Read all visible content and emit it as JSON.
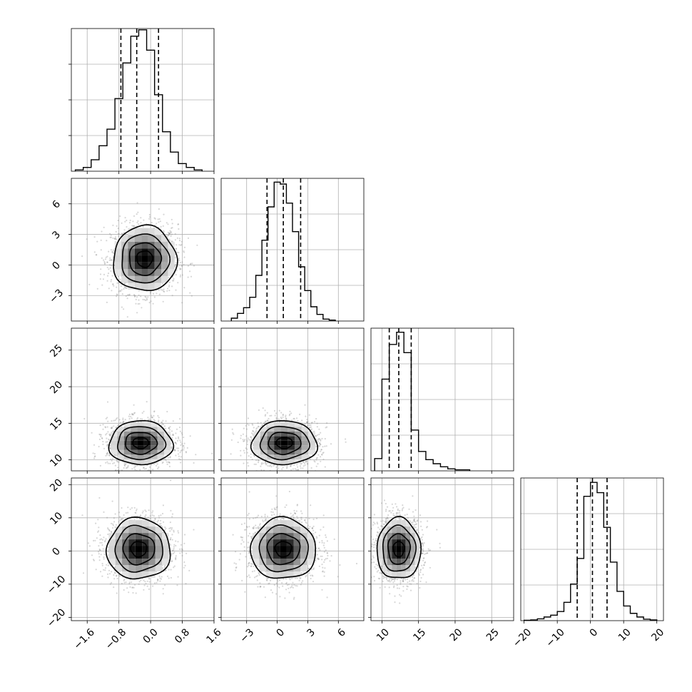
{
  "chart_data": {
    "type": "corner",
    "grid": true,
    "colors": {
      "hist": "#000000",
      "contour": "#000000",
      "scatter": "#8c8c8c",
      "grid": "#b0b0b0"
    },
    "parameters": [
      {
        "range": [
          -2.0,
          1.6
        ],
        "ticks": [
          -1.6,
          -0.8,
          0.0,
          0.8,
          1.6
        ],
        "tick_labels": [
          "−1.6",
          "−0.8",
          "0.0",
          "0.8",
          "1.6"
        ],
        "quantiles": [
          -0.75,
          -0.35,
          0.2
        ],
        "histogram": {
          "edges": [
            -1.9,
            -1.7,
            -1.5,
            -1.3,
            -1.1,
            -0.9,
            -0.7,
            -0.5,
            -0.3,
            -0.1,
            0.1,
            0.3,
            0.5,
            0.7,
            0.9,
            1.1,
            1.3
          ],
          "counts": [
            1,
            3,
            9,
            20,
            33,
            57,
            85,
            106,
            111,
            95,
            60,
            31,
            15,
            6,
            3,
            1
          ],
          "ymax": 112
        }
      },
      {
        "range": [
          -5.5,
          8.5
        ],
        "ticks": [
          -3,
          0,
          3,
          6
        ],
        "tick_labels": [
          "−3",
          "0",
          "3",
          "6"
        ],
        "quantiles": [
          -1.0,
          0.6,
          2.3
        ],
        "histogram": {
          "edges": [
            -4.5,
            -3.9,
            -3.3,
            -2.7,
            -2.1,
            -1.5,
            -0.9,
            -0.3,
            0.3,
            0.9,
            1.5,
            2.1,
            2.7,
            3.3,
            3.9,
            4.5,
            5.1,
            5.7
          ],
          "counts": [
            3,
            8,
            14,
            25,
            48,
            85,
            120,
            146,
            144,
            124,
            94,
            57,
            32,
            15,
            7,
            2,
            1
          ],
          "ymax": 150
        }
      },
      {
        "range": [
          8.5,
          28.0
        ],
        "ticks": [
          10,
          15,
          20,
          25
        ],
        "tick_labels": [
          "10",
          "15",
          "20",
          "25"
        ],
        "quantiles": [
          11.0,
          12.3,
          14.0
        ],
        "histogram": {
          "edges": [
            9.0,
            10.0,
            11.0,
            12.0,
            13.0,
            14.0,
            15.0,
            16.0,
            17.0,
            18.0,
            19.0,
            20.0,
            21.0,
            22.0
          ],
          "counts": [
            12,
            90,
            124,
            136,
            116,
            40,
            19,
            11,
            7,
            4,
            2,
            1,
            1
          ],
          "ymax": 140
        }
      },
      {
        "range": [
          -21.0,
          22.0
        ],
        "ticks": [
          -20,
          -10,
          0,
          10,
          20
        ],
        "tick_labels": [
          "−20",
          "−10",
          "0",
          "10",
          "20"
        ],
        "quantiles": [
          -4.0,
          0.6,
          5.0
        ],
        "histogram": {
          "edges": [
            -20,
            -18,
            -16,
            -14,
            -12,
            -10,
            -8,
            -6,
            -4,
            -2,
            0,
            2,
            4,
            6,
            8,
            10,
            12,
            14,
            16,
            18,
            20
          ],
          "counts": [
            1,
            2,
            5,
            10,
            15,
            25,
            50,
            100,
            170,
            340,
            378,
            350,
            255,
            160,
            80,
            40,
            20,
            10,
            4,
            2
          ],
          "ymax": 390
        }
      }
    ],
    "pairs": [
      {
        "x": 0,
        "y": 1,
        "center": [
          -0.15,
          0.6
        ],
        "sd": [
          0.4,
          1.6
        ],
        "rho": 0.0
      },
      {
        "x": 0,
        "y": 2,
        "center": [
          -0.25,
          12.3
        ],
        "sd": [
          0.4,
          1.5
        ],
        "rho": 0.0
      },
      {
        "x": 1,
        "y": 2,
        "center": [
          0.7,
          12.3
        ],
        "sd": [
          1.6,
          1.5
        ],
        "rho": 0.0
      },
      {
        "x": 0,
        "y": 3,
        "center": [
          -0.3,
          0.6
        ],
        "sd": [
          0.4,
          4.6
        ],
        "rho": 0.0
      },
      {
        "x": 1,
        "y": 3,
        "center": [
          0.6,
          0.6
        ],
        "sd": [
          1.6,
          4.6
        ],
        "rho": 0.0
      },
      {
        "x": 2,
        "y": 3,
        "center": [
          12.3,
          0.6
        ],
        "sd": [
          1.5,
          4.6
        ],
        "rho": 0.0
      }
    ]
  }
}
